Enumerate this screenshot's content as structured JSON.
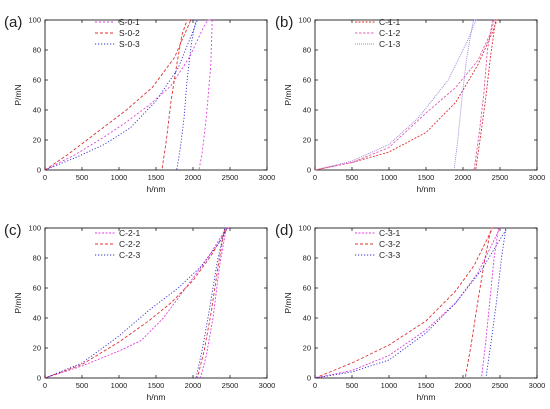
{
  "figure": {
    "background": "#ffffff"
  },
  "chart_data": [
    {
      "type": "line",
      "panel_label": "(a)",
      "xlabel": "h/nm",
      "ylabel": "P/mN",
      "xlim": [
        0,
        3000
      ],
      "ylim": [
        0,
        100
      ],
      "xticks": [
        0,
        500,
        1000,
        1500,
        2000,
        2500,
        3000
      ],
      "yticks": [
        0,
        20,
        40,
        60,
        80,
        100
      ],
      "legend_position": "top-left",
      "series": [
        {
          "name": "S-0-1",
          "color": "#e040e0",
          "dash": "2,2",
          "x": [
            0,
            400,
            800,
            1100,
            1400,
            1700,
            1950,
            2150,
            2200,
            2260,
            2240,
            2180,
            2120,
            2080
          ],
          "y": [
            0,
            10,
            22,
            32,
            43,
            56,
            75,
            96,
            100,
            100,
            70,
            35,
            10,
            0
          ]
        },
        {
          "name": "S-0-2",
          "color": "#e03030",
          "dash": "3,2",
          "x": [
            0,
            300,
            700,
            1100,
            1450,
            1750,
            1900,
            1970,
            1920,
            1850,
            1780,
            1700,
            1640,
            1580
          ],
          "y": [
            0,
            10,
            25,
            40,
            55,
            75,
            92,
            100,
            100,
            90,
            70,
            45,
            20,
            0
          ]
        },
        {
          "name": "S-0-3",
          "color": "#3030d0",
          "dash": "1.2,1.8",
          "x": [
            0,
            400,
            800,
            1150,
            1500,
            1800,
            1980,
            2060,
            2040,
            1980,
            1920,
            1880,
            1830,
            1780
          ],
          "y": [
            0,
            8,
            17,
            28,
            46,
            68,
            90,
            100,
            100,
            85,
            60,
            35,
            15,
            0
          ]
        }
      ]
    },
    {
      "type": "line",
      "panel_label": "(b)",
      "xlabel": "h/nm",
      "ylabel": "P/mN",
      "xlim": [
        0,
        3000
      ],
      "ylim": [
        0,
        100
      ],
      "xticks": [
        0,
        500,
        1000,
        1500,
        2000,
        2500,
        3000
      ],
      "yticks": [
        0,
        20,
        40,
        60,
        80,
        100
      ],
      "legend_position": "top-left",
      "series": [
        {
          "name": "C-1-1",
          "color": "#e03030",
          "dash": "2,1.5",
          "x": [
            0,
            500,
            1000,
            1500,
            1900,
            2200,
            2400,
            2460,
            2440,
            2370,
            2300,
            2230,
            2170
          ],
          "y": [
            0,
            5,
            12,
            25,
            45,
            70,
            92,
            100,
            100,
            75,
            45,
            20,
            0
          ]
        },
        {
          "name": "C-1-2",
          "color": "#e060b0",
          "dash": "2.5,1.5",
          "x": [
            0,
            500,
            1000,
            1500,
            1900,
            2200,
            2380,
            2420,
            2400,
            2330,
            2280,
            2220,
            2150
          ],
          "y": [
            0,
            5,
            15,
            38,
            55,
            73,
            92,
            100,
            100,
            80,
            50,
            25,
            0
          ]
        },
        {
          "name": "C-1-3",
          "color": "#9b7fe0",
          "dash": "1,1",
          "x": [
            0,
            500,
            1000,
            1400,
            1800,
            2050,
            2160,
            2180,
            2140,
            2050,
            1980,
            1930,
            1880
          ],
          "y": [
            0,
            6,
            17,
            35,
            60,
            85,
            98,
            100,
            100,
            75,
            45,
            20,
            0
          ]
        }
      ]
    },
    {
      "type": "line",
      "panel_label": "(c)",
      "xlabel": "h/nm",
      "ylabel": "P/mN",
      "xlim": [
        0,
        3000
      ],
      "ylim": [
        0,
        100
      ],
      "xticks": [
        0,
        500,
        1000,
        1500,
        2000,
        2500,
        3000
      ],
      "yticks": [
        0,
        20,
        40,
        60,
        80,
        100
      ],
      "legend_position": "top-left",
      "series": [
        {
          "name": "C-2-1",
          "color": "#e040e0",
          "dash": "2,1.5",
          "x": [
            0,
            500,
            1000,
            1300,
            1600,
            1900,
            2200,
            2400,
            2480,
            2450,
            2360,
            2270,
            2180,
            2100
          ],
          "y": [
            0,
            8,
            18,
            25,
            40,
            60,
            80,
            96,
            100,
            100,
            75,
            40,
            15,
            0
          ]
        },
        {
          "name": "C-2-2",
          "color": "#e03030",
          "dash": "3,2",
          "x": [
            0,
            500,
            1000,
            1400,
            1700,
            2000,
            2250,
            2420,
            2460,
            2430,
            2340,
            2250,
            2150,
            2060
          ],
          "y": [
            0,
            9,
            24,
            38,
            50,
            65,
            82,
            96,
            100,
            100,
            75,
            45,
            18,
            0
          ]
        },
        {
          "name": "C-2-3",
          "color": "#3030d0",
          "dash": "1.2,1.8",
          "x": [
            0,
            500,
            1000,
            1400,
            1800,
            2100,
            2350,
            2440,
            2460,
            2430,
            2330,
            2230,
            2130,
            2040
          ],
          "y": [
            0,
            10,
            28,
            45,
            60,
            74,
            90,
            98,
            100,
            100,
            78,
            48,
            20,
            0
          ]
        }
      ]
    },
    {
      "type": "line",
      "panel_label": "(d)",
      "xlabel": "h/nm",
      "ylabel": "P/mN",
      "xlim": [
        0,
        3000
      ],
      "ylim": [
        0,
        100
      ],
      "xticks": [
        0,
        500,
        1000,
        1500,
        2000,
        2500,
        3000
      ],
      "yticks": [
        0,
        20,
        40,
        60,
        80,
        100
      ],
      "legend_position": "top-left",
      "series": [
        {
          "name": "C-3-1",
          "color": "#e040e0",
          "dash": "2,1.5",
          "x": [
            0,
            500,
            1000,
            1500,
            1900,
            2200,
            2440,
            2500,
            2480,
            2420,
            2360,
            2310,
            2250
          ],
          "y": [
            0,
            5,
            15,
            32,
            50,
            70,
            94,
            100,
            100,
            80,
            50,
            25,
            0
          ]
        },
        {
          "name": "C-3-2",
          "color": "#e03030",
          "dash": "3,2",
          "x": [
            0,
            500,
            1000,
            1500,
            1900,
            2150,
            2350,
            2400,
            2380,
            2290,
            2190,
            2110,
            2030
          ],
          "y": [
            0,
            10,
            22,
            38,
            58,
            75,
            95,
            100,
            100,
            78,
            48,
            22,
            0
          ]
        },
        {
          "name": "C-3-3",
          "color": "#3030d0",
          "dash": "1.2,1.8",
          "x": [
            0,
            500,
            1000,
            1500,
            1900,
            2250,
            2520,
            2600,
            2580,
            2520,
            2450,
            2380,
            2310
          ],
          "y": [
            0,
            4,
            12,
            30,
            50,
            72,
            94,
            100,
            100,
            80,
            50,
            24,
            0
          ]
        }
      ]
    }
  ]
}
